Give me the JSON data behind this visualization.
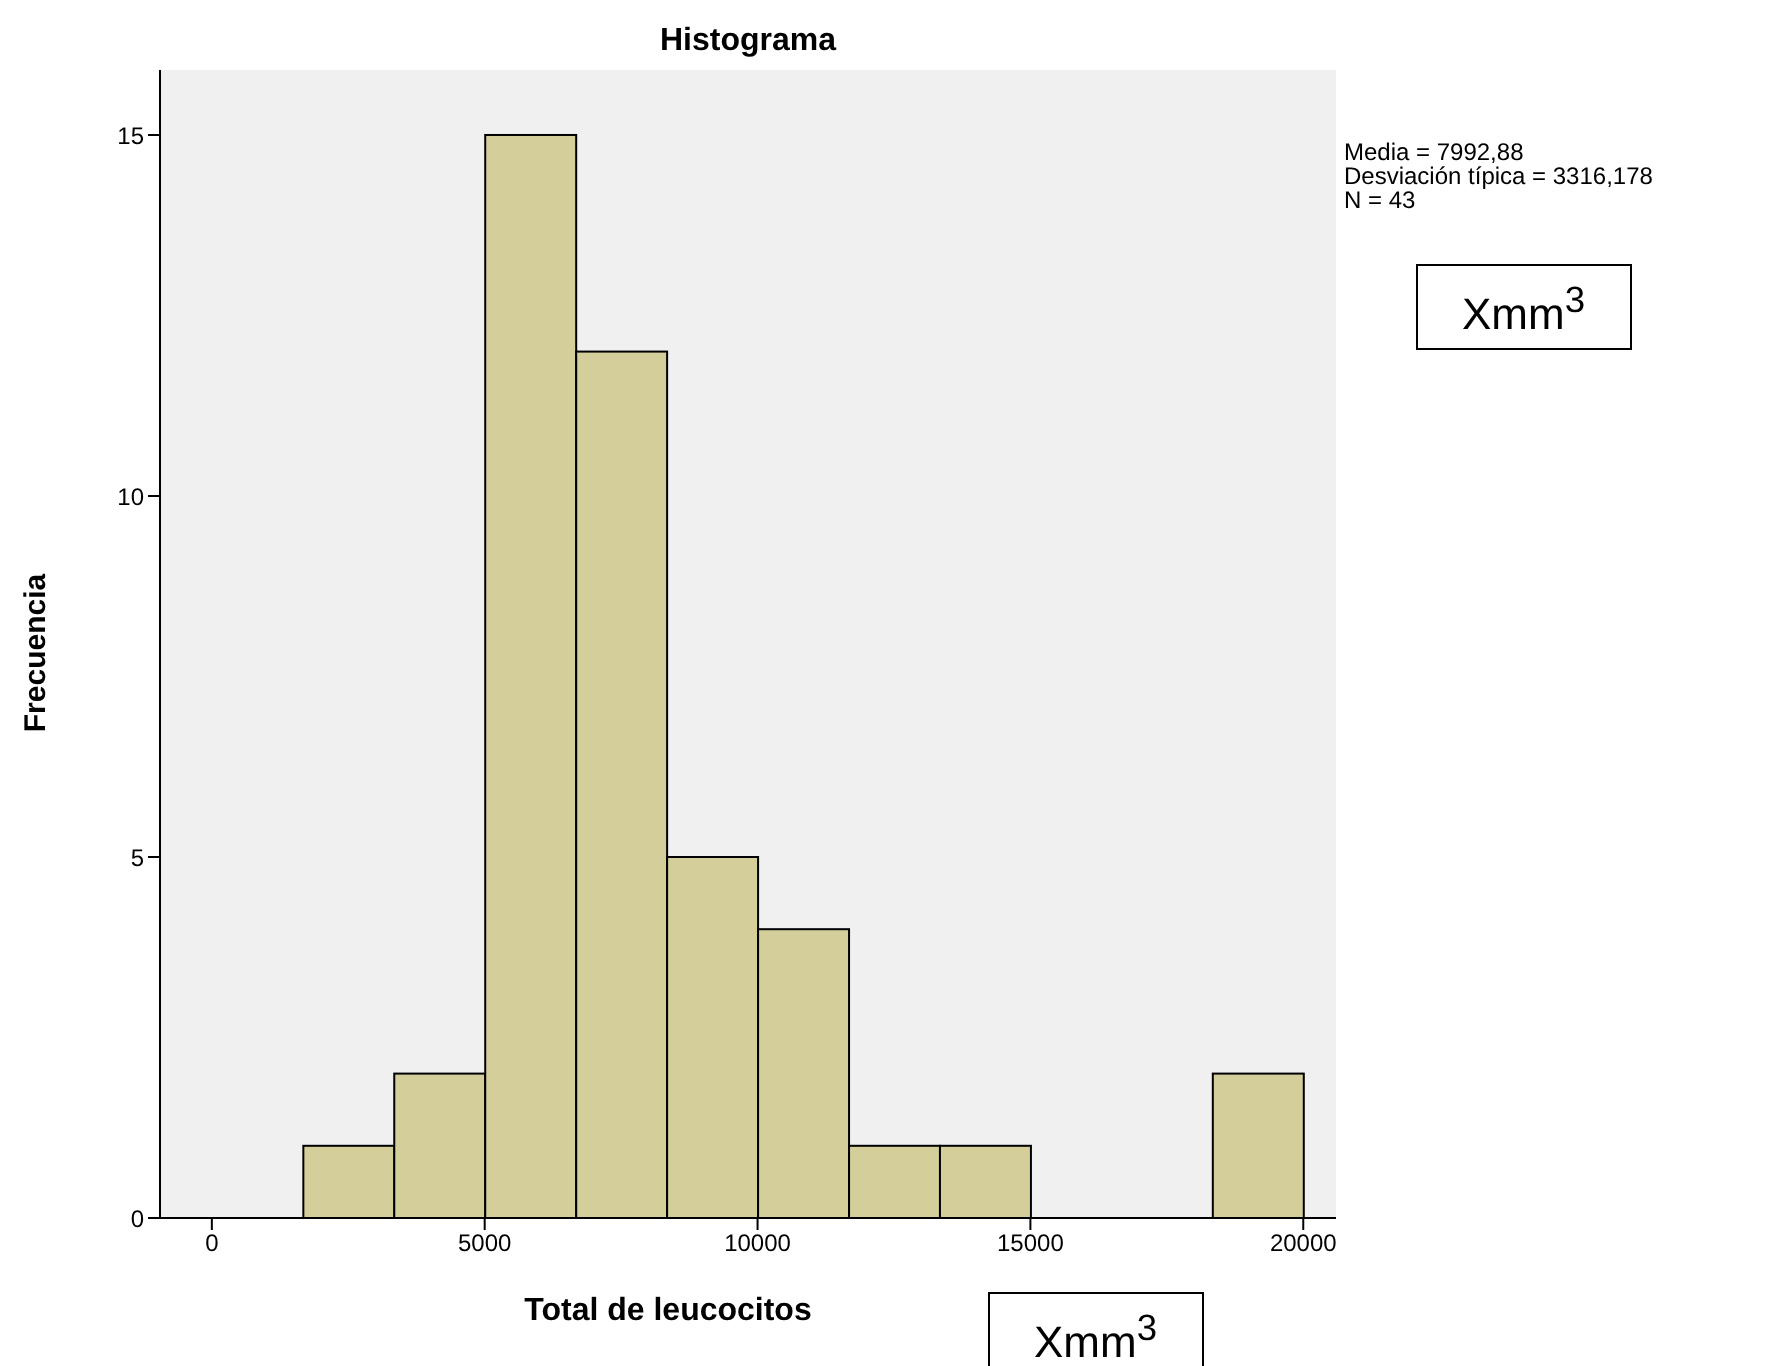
{
  "chart_data": {
    "type": "histogram",
    "title": "Histograma",
    "xlabel": "Total de leucocitos",
    "ylabel": "Frecuencia",
    "bins": [
      1667,
      3333,
      5000,
      6667,
      8333,
      10000,
      11667,
      13333,
      15000,
      16667,
      18333,
      20000
    ],
    "values": [
      1,
      2,
      15,
      12,
      5,
      4,
      1,
      1,
      0,
      0,
      2
    ],
    "color": "#d3ce9a",
    "xlim": [
      -950,
      20600
    ],
    "xticks": [
      0,
      5000,
      10000,
      15000,
      20000
    ],
    "ylim": [
      0,
      15.9
    ],
    "yticks": [
      0,
      5,
      10,
      15
    ],
    "grid": false,
    "legend": false,
    "annotations": [
      "Media = 7992,88",
      "Desviación típica = 3316,178",
      "N = 43",
      "Xmm$^{3}$",
      "Xmm$^{3}$"
    ]
  }
}
